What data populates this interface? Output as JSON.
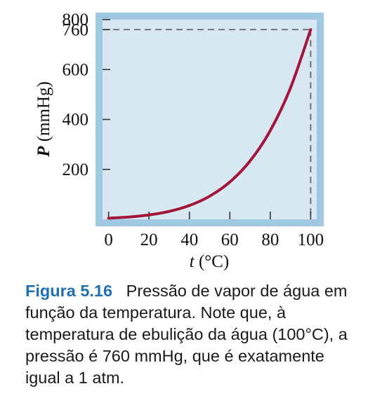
{
  "chart_data": {
    "type": "line",
    "xlabel_var": "t",
    "xlabel_unit": "(°C)",
    "ylabel_var": "P",
    "ylabel_unit": "(mmHg)",
    "xlim": [
      -3,
      103
    ],
    "ylim": [
      0,
      800
    ],
    "x_ticks": [
      0,
      20,
      40,
      60,
      80,
      100
    ],
    "y_ticks": [
      200,
      400,
      600,
      760,
      800
    ],
    "x_tick_labels": [
      "0",
      "20",
      "40",
      "60",
      "80",
      "100"
    ],
    "y_tick_labels": [
      "200",
      "400",
      "600",
      "760",
      "800"
    ],
    "grid": false,
    "reference_lines": {
      "x": 100,
      "y": 760,
      "style": "dashed"
    },
    "series": [
      {
        "x": [
          0,
          10,
          20,
          30,
          40,
          50,
          60,
          70,
          80,
          90,
          100
        ],
        "y": [
          4.6,
          9.2,
          17.5,
          31.8,
          55.3,
          92.5,
          149.4,
          233.7,
          355.1,
          525.8,
          760
        ],
        "color": "#a3163a"
      }
    ]
  },
  "caption": {
    "label": "Figura 5.16",
    "text": "Pressão de vapor de água em função da temperatura. Note que, à temperatura de ebulição da água (100°C), a pressão é 760 mmHg, que é exatamente igual a 1 atm."
  },
  "colors": {
    "plot_background": "#d7e8f3",
    "plot_border": "#9fc9e3",
    "curve": "#a3163a",
    "caption_label": "#1f6fb5"
  }
}
